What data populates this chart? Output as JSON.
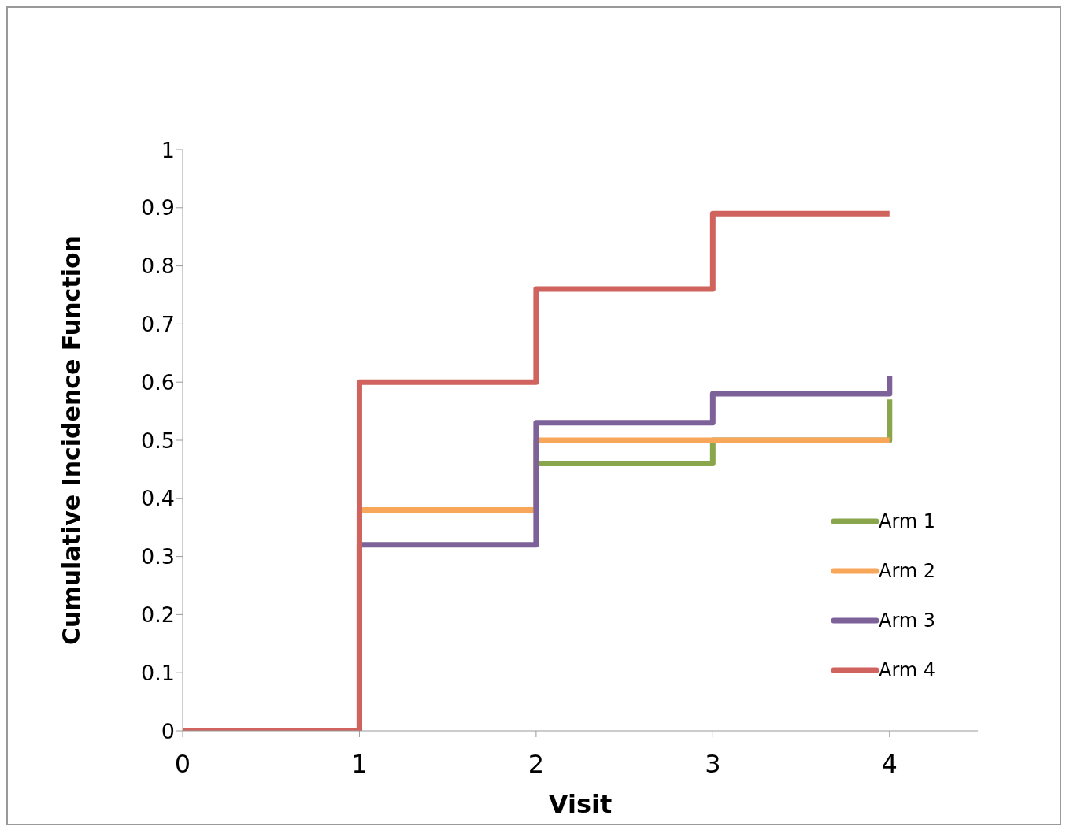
{
  "chart_data": {
    "type": "step",
    "xlabel": "Visit",
    "ylabel": "Cumulative Incidence Function",
    "x": [
      0,
      1,
      2,
      3,
      4
    ],
    "series": [
      {
        "name": "Arm 1",
        "color": "#8aa64c",
        "values": [
          null,
          null,
          0.46,
          0.5,
          0.57
        ]
      },
      {
        "name": "Arm 2",
        "color": "#f8a65a",
        "values": [
          0,
          0.38,
          0.5,
          0.5,
          0.5
        ]
      },
      {
        "name": "Arm 3",
        "color": "#7d6199",
        "values": [
          0,
          0.32,
          0.53,
          0.58,
          0.61
        ]
      },
      {
        "name": "Arm 4",
        "color": "#d0635d",
        "values": [
          0,
          0.6,
          0.76,
          0.89,
          0.89
        ]
      }
    ],
    "xlim": [
      0,
      4.5
    ],
    "xticks": [
      0,
      1,
      2,
      3,
      4
    ],
    "ylim": [
      0,
      1
    ],
    "yticks": [
      0,
      0.1,
      0.2,
      0.3,
      0.4,
      0.5,
      0.6,
      0.7,
      0.8,
      0.9,
      1
    ],
    "grid": false,
    "legend": "right",
    "marker": "none",
    "line_style": "solid"
  }
}
